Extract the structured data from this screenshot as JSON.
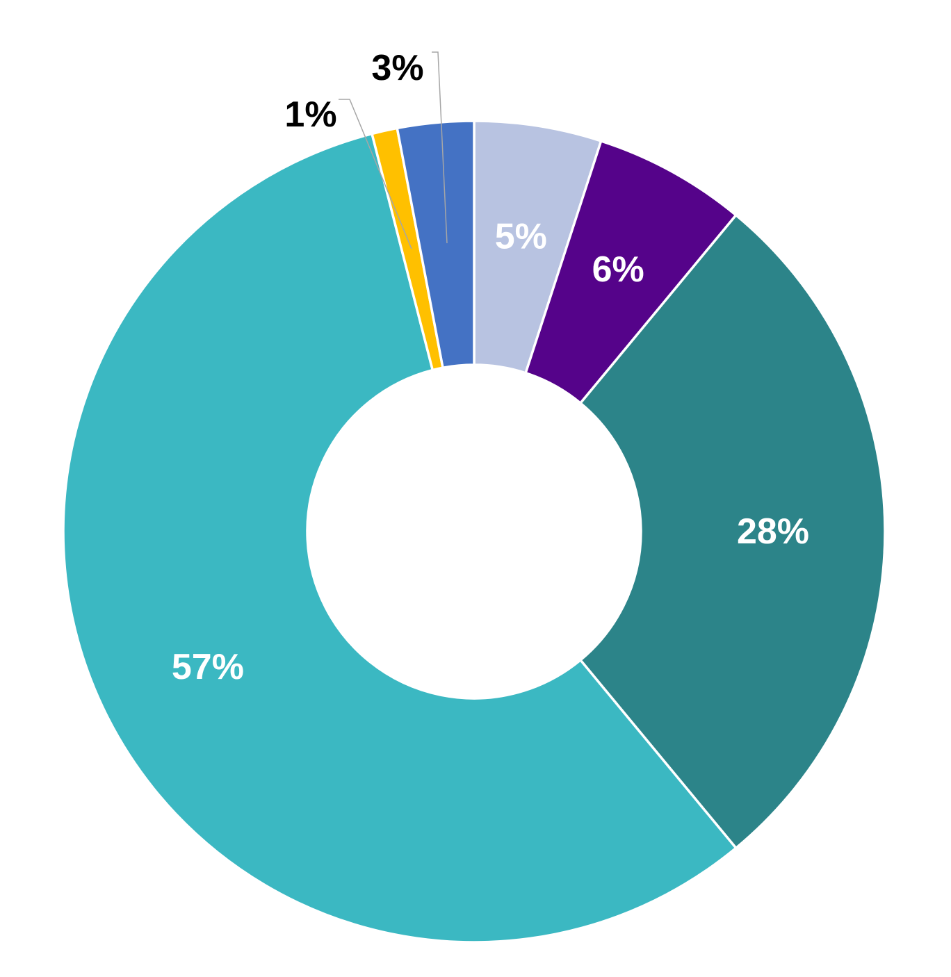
{
  "chart_data": {
    "type": "pie",
    "variant": "donut",
    "title": "",
    "slices": [
      {
        "label": "5%",
        "value": 5,
        "color": "#B8C3E1",
        "label_color": "#FFFFFF",
        "label_placement": "inside"
      },
      {
        "label": "6%",
        "value": 6,
        "color": "#55038A",
        "label_color": "#FFFFFF",
        "label_placement": "inside"
      },
      {
        "label": "28%",
        "value": 28,
        "color": "#2C8489",
        "label_color": "#FFFFFF",
        "label_placement": "inside"
      },
      {
        "label": "57%",
        "value": 57,
        "color": "#3BB8C2",
        "label_color": "#FFFFFF",
        "label_placement": "inside"
      },
      {
        "label": "1%",
        "value": 1,
        "color": "#FFC000",
        "label_color": "#000000",
        "label_placement": "outside"
      },
      {
        "label": "3%",
        "value": 3,
        "color": "#4472C4",
        "label_color": "#000000",
        "label_placement": "outside"
      }
    ],
    "start_angle_deg": 0,
    "direction": "clockwise",
    "legend": "none"
  }
}
